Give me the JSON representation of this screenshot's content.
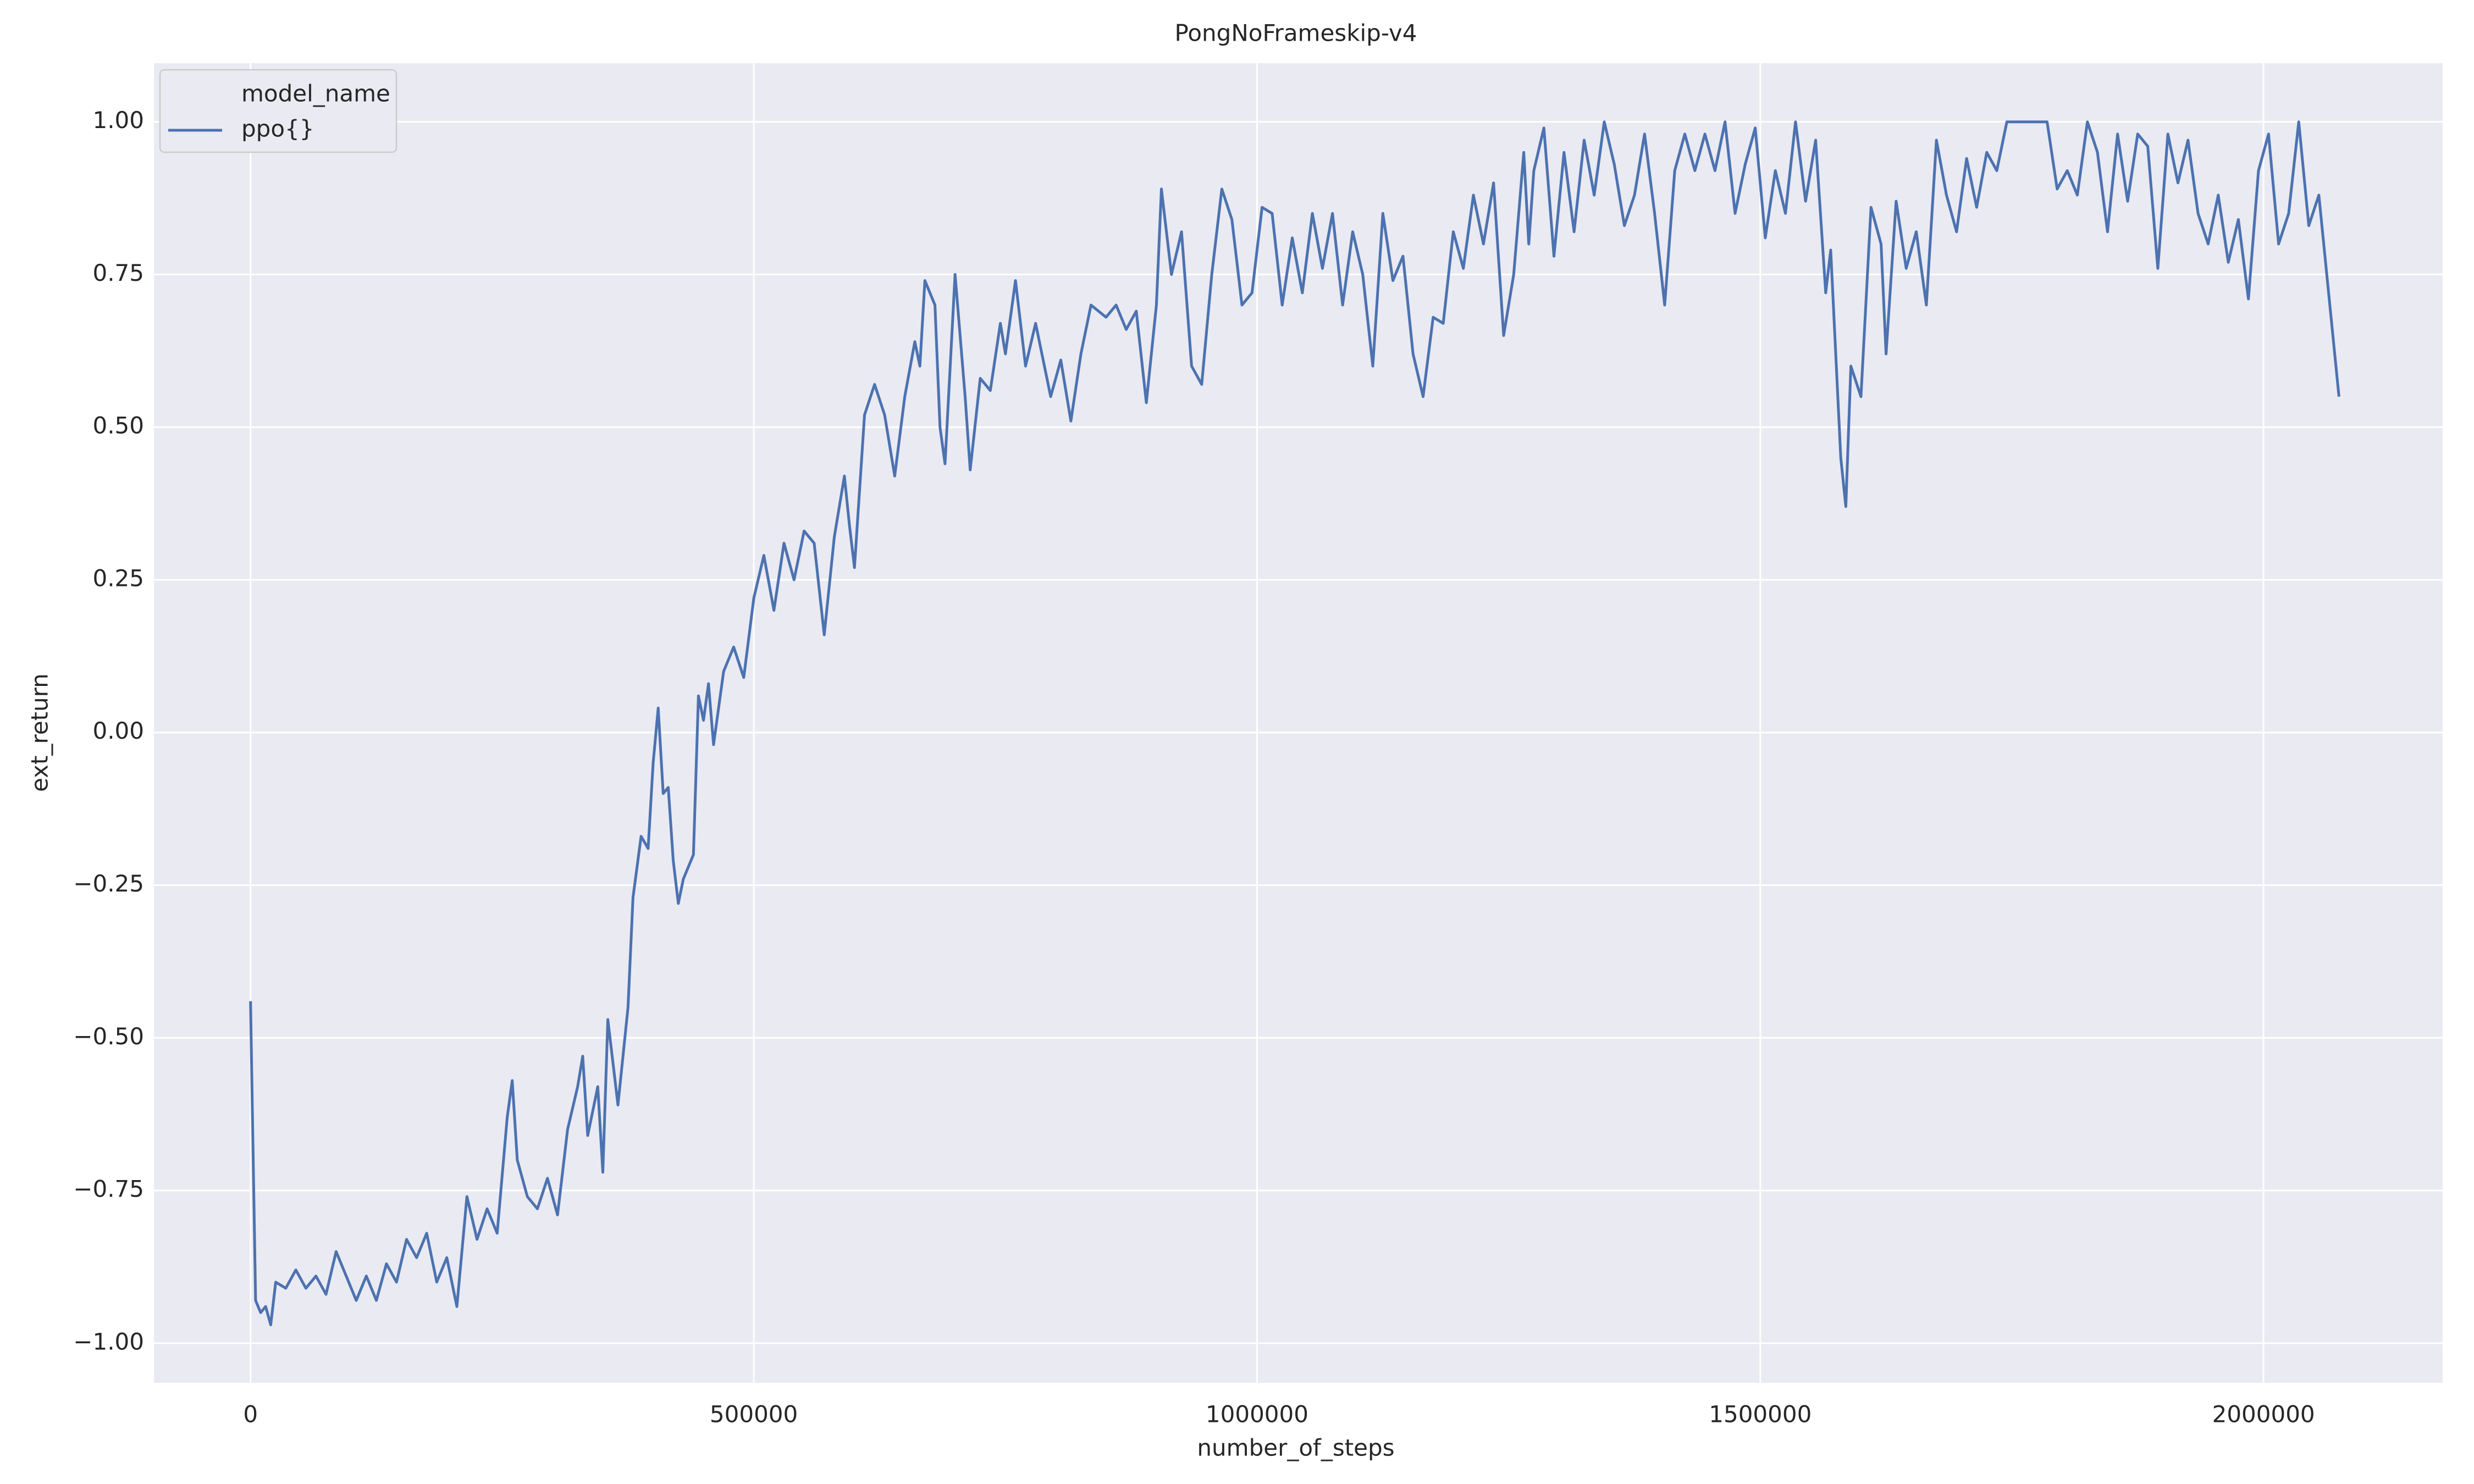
{
  "chart_data": {
    "type": "line",
    "title": "PongNoFrameskip-v4",
    "x_label": "number_of_steps",
    "y_label": "ext_return",
    "legend_title": "model_name",
    "legend": "upper left",
    "grid": true,
    "background": "#eaeaf2",
    "xlim": [
      -96000,
      2178000
    ],
    "ylim": [
      -1.065,
      1.096
    ],
    "xticks": [
      0,
      500000,
      1000000,
      1500000,
      2000000
    ],
    "yticks": [
      {
        "value": -1.0,
        "label": "−1.00"
      },
      {
        "value": -0.75,
        "label": "−0.75"
      },
      {
        "value": -0.5,
        "label": "−0.50"
      },
      {
        "value": -0.25,
        "label": "−0.25"
      },
      {
        "value": 0.0,
        "label": "0.00"
      },
      {
        "value": 0.25,
        "label": "0.25"
      },
      {
        "value": 0.5,
        "label": "0.50"
      },
      {
        "value": 0.75,
        "label": "0.75"
      },
      {
        "value": 1.0,
        "label": "1.00"
      }
    ],
    "x": [
      0,
      5000,
      10000,
      15000,
      20000,
      25000,
      35000,
      45000,
      55000,
      65000,
      75000,
      85000,
      95000,
      105000,
      115000,
      125000,
      135000,
      145000,
      155000,
      165000,
      175000,
      185000,
      195000,
      205000,
      215000,
      225000,
      235000,
      245000,
      255000,
      260000,
      265000,
      275000,
      285000,
      295000,
      305000,
      315000,
      325000,
      330000,
      335000,
      345000,
      350000,
      355000,
      365000,
      375000,
      380000,
      388000,
      395000,
      400000,
      405000,
      410000,
      415000,
      420000,
      425000,
      430000,
      440000,
      445000,
      450000,
      455000,
      460000,
      470000,
      480000,
      490000,
      500000,
      510000,
      520000,
      530000,
      540000,
      550000,
      560000,
      570000,
      580000,
      585000,
      590000,
      595000,
      600000,
      610000,
      620000,
      630000,
      640000,
      650000,
      660000,
      665000,
      670000,
      680000,
      685000,
      690000,
      700000,
      710000,
      715000,
      725000,
      735000,
      745000,
      750000,
      760000,
      770000,
      780000,
      795000,
      805000,
      815000,
      825000,
      835000,
      850000,
      860000,
      870000,
      880000,
      890000,
      900000,
      905000,
      915000,
      925000,
      935000,
      945000,
      955000,
      965000,
      975000,
      985000,
      995000,
      1005000,
      1015000,
      1025000,
      1035000,
      1045000,
      1055000,
      1065000,
      1075000,
      1085000,
      1095000,
      1105000,
      1115000,
      1125000,
      1135000,
      1145000,
      1155000,
      1165000,
      1175000,
      1185000,
      1195000,
      1205000,
      1215000,
      1225000,
      1235000,
      1245000,
      1255000,
      1265000,
      1270000,
      1275000,
      1285000,
      1295000,
      1305000,
      1315000,
      1325000,
      1335000,
      1345000,
      1355000,
      1365000,
      1375000,
      1385000,
      1395000,
      1405000,
      1415000,
      1425000,
      1435000,
      1445000,
      1455000,
      1465000,
      1475000,
      1485000,
      1495000,
      1505000,
      1515000,
      1525000,
      1535000,
      1545000,
      1555000,
      1565000,
      1570000,
      1580000,
      1585000,
      1590000,
      1600000,
      1610000,
      1620000,
      1625000,
      1635000,
      1645000,
      1655000,
      1665000,
      1675000,
      1685000,
      1695000,
      1705000,
      1715000,
      1725000,
      1735000,
      1745000,
      1755000,
      1775000,
      1785000,
      1795000,
      1805000,
      1815000,
      1825000,
      1835000,
      1845000,
      1855000,
      1865000,
      1875000,
      1885000,
      1895000,
      1905000,
      1915000,
      1925000,
      1935000,
      1945000,
      1955000,
      1965000,
      1975000,
      1985000,
      1995000,
      2005000,
      2015000,
      2025000,
      2035000,
      2045000,
      2055000,
      2075000
    ],
    "series": [
      {
        "name": "ppo{}",
        "color": "#4c72b0",
        "values": [
          -0.44,
          -0.93,
          -0.95,
          -0.94,
          -0.97,
          -0.9,
          -0.91,
          -0.88,
          -0.91,
          -0.89,
          -0.92,
          -0.85,
          -0.89,
          -0.93,
          -0.89,
          -0.93,
          -0.87,
          -0.9,
          -0.83,
          -0.86,
          -0.82,
          -0.9,
          -0.86,
          -0.94,
          -0.76,
          -0.83,
          -0.78,
          -0.82,
          -0.63,
          -0.57,
          -0.7,
          -0.76,
          -0.78,
          -0.73,
          -0.79,
          -0.65,
          -0.58,
          -0.53,
          -0.66,
          -0.58,
          -0.72,
          -0.47,
          -0.61,
          -0.45,
          -0.27,
          -0.17,
          -0.19,
          -0.05,
          0.04,
          -0.1,
          -0.09,
          -0.21,
          -0.28,
          -0.24,
          -0.2,
          0.06,
          0.02,
          0.08,
          -0.02,
          0.1,
          0.14,
          0.09,
          0.22,
          0.29,
          0.2,
          0.31,
          0.25,
          0.33,
          0.31,
          0.16,
          0.32,
          0.37,
          0.42,
          0.34,
          0.27,
          0.52,
          0.57,
          0.52,
          0.42,
          0.55,
          0.64,
          0.6,
          0.74,
          0.7,
          0.5,
          0.44,
          0.75,
          0.55,
          0.43,
          0.58,
          0.56,
          0.67,
          0.62,
          0.74,
          0.6,
          0.67,
          0.55,
          0.61,
          0.51,
          0.62,
          0.7,
          0.68,
          0.7,
          0.66,
          0.69,
          0.54,
          0.7,
          0.89,
          0.75,
          0.82,
          0.6,
          0.57,
          0.75,
          0.89,
          0.84,
          0.7,
          0.72,
          0.86,
          0.85,
          0.7,
          0.81,
          0.72,
          0.85,
          0.76,
          0.85,
          0.7,
          0.82,
          0.75,
          0.6,
          0.85,
          0.74,
          0.78,
          0.62,
          0.55,
          0.68,
          0.67,
          0.82,
          0.76,
          0.88,
          0.8,
          0.9,
          0.65,
          0.75,
          0.95,
          0.8,
          0.92,
          0.99,
          0.78,
          0.95,
          0.82,
          0.97,
          0.88,
          1.0,
          0.93,
          0.83,
          0.88,
          0.98,
          0.85,
          0.7,
          0.92,
          0.98,
          0.92,
          0.98,
          0.92,
          1.0,
          0.85,
          0.93,
          0.99,
          0.81,
          0.92,
          0.85,
          1.0,
          0.87,
          0.97,
          0.72,
          0.79,
          0.45,
          0.37,
          0.6,
          0.55,
          0.86,
          0.8,
          0.62,
          0.87,
          0.76,
          0.82,
          0.7,
          0.97,
          0.88,
          0.82,
          0.94,
          0.86,
          0.95,
          0.92,
          1.0,
          1.0,
          1.0,
          1.0,
          0.89,
          0.92,
          0.88,
          1.0,
          0.95,
          0.82,
          0.98,
          0.87,
          0.98,
          0.96,
          0.76,
          0.98,
          0.9,
          0.97,
          0.85,
          0.8,
          0.88,
          0.77,
          0.84,
          0.71,
          0.92,
          0.98,
          0.8,
          0.85,
          1.0,
          0.83,
          0.88,
          0.55
        ]
      }
    ]
  }
}
